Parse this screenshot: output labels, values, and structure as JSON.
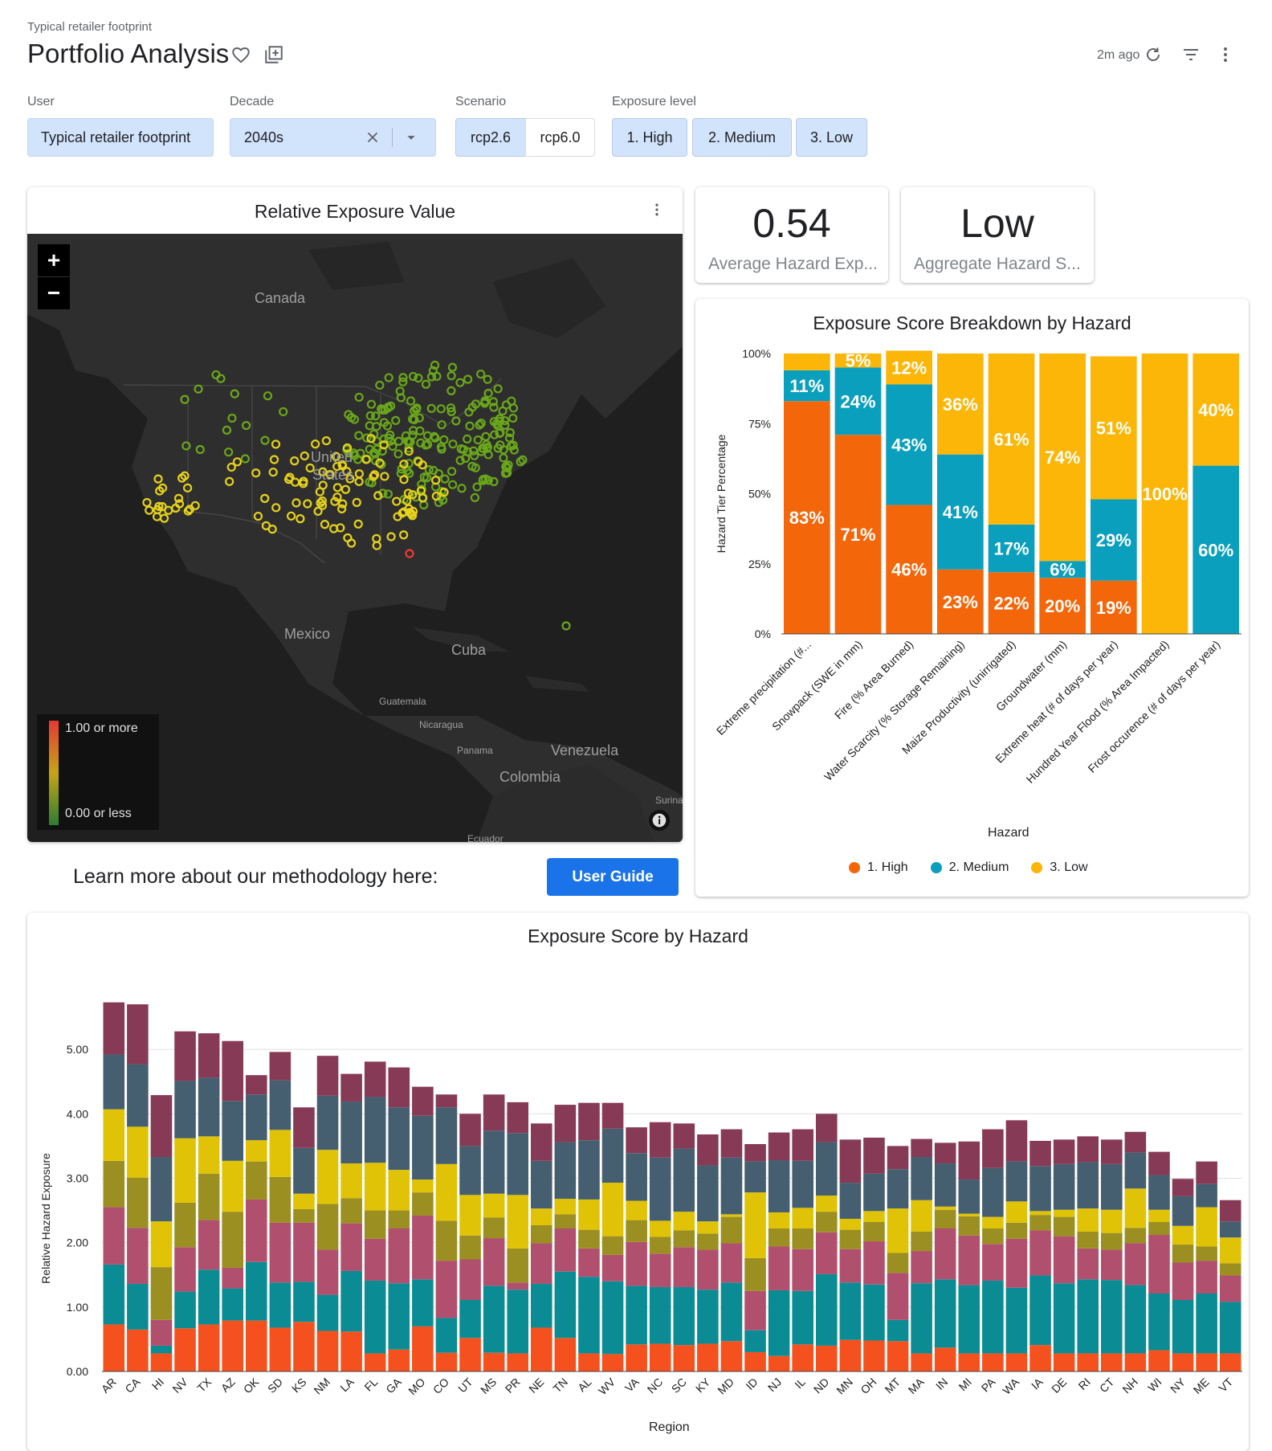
{
  "header": {
    "breadcrumb": "Typical retailer footprint",
    "title": "Portfolio Analysis",
    "updated": "2m ago",
    "icons": [
      "heart-icon",
      "add-to-collection-icon",
      "refresh-icon",
      "filter-icon",
      "more-vert-icon"
    ]
  },
  "filters": {
    "user": {
      "label": "User",
      "value": "Typical retailer footprint"
    },
    "decade": {
      "label": "Decade",
      "value": "2040s"
    },
    "scenario": {
      "label": "Scenario",
      "options": [
        "rcp2.6",
        "rcp6.0"
      ],
      "selected": "rcp2.6"
    },
    "exposure": {
      "label": "Exposure level",
      "options": [
        "1. High",
        "2. Medium",
        "3. Low"
      ]
    }
  },
  "map_card": {
    "title": "Relative Exposure Value",
    "zoom_in": "+",
    "zoom_out": "−",
    "labels": {
      "canada": "Canada",
      "us1": "United",
      "us2": "States",
      "mexico": "Mexico",
      "cuba": "Cuba",
      "guatemala": "Guatemala",
      "nicaragua": "Nicaragua",
      "panama": "Panama",
      "venezuela": "Venezuela",
      "colombia": "Colombia",
      "ecuador": "Ecuador",
      "suriname": "Surina"
    },
    "legend": {
      "max": "1.00 or more",
      "min": "0.00 or less"
    },
    "colors": {
      "low": "#6aa61b",
      "mid": "#e6d21b",
      "high": "#e53935"
    }
  },
  "kpis": [
    {
      "value": "0.54",
      "label": "Average Hazard Exp..."
    },
    {
      "value": "Low",
      "label": "Aggregate Hazard S..."
    }
  ],
  "methodology": {
    "text": "Learn more about our methodology here:",
    "button": "User Guide"
  },
  "breakdown_chart": {
    "title": "Exposure Score Breakdown by Hazard",
    "type": "bar",
    "stacked": true,
    "normalized": true,
    "xlabel": "Hazard",
    "ylabel": "Hazard Tier Percentage",
    "yticks": [
      "0%",
      "25%",
      "50%",
      "75%",
      "100%"
    ],
    "categories": [
      "Extreme precipitation (#...",
      "Snowpack (SWE in mm)",
      "Fire (% Area Burned)",
      "Water Scarcity (% Storage Remaining)",
      "Maize Productivity (unirrigated)",
      "Groundwater (mm)",
      "Extreme heat (# of days per year)",
      "Hundred Year Flood (% Area Impacted)",
      "Frost occurence (# of days per year)"
    ],
    "series": [
      {
        "name": "1. High",
        "color": "#f4660a",
        "values": [
          83,
          71,
          46,
          23,
          22,
          20,
          19,
          0,
          0
        ]
      },
      {
        "name": "2. Medium",
        "color": "#0b9fbe",
        "values": [
          11,
          24,
          43,
          41,
          17,
          6,
          29,
          0,
          60
        ]
      },
      {
        "name": "3. Low",
        "color": "#fbb608",
        "values": [
          6,
          5,
          12,
          36,
          61,
          74,
          51,
          100,
          40
        ]
      }
    ],
    "labels": [
      [
        "83%",
        "11%",
        ""
      ],
      [
        "71%",
        "24%",
        "5%"
      ],
      [
        "46%",
        "43%",
        "12%"
      ],
      [
        "23%",
        "41%",
        "36%"
      ],
      [
        "22%",
        "17%",
        "61%"
      ],
      [
        "20%",
        "6%",
        "74%"
      ],
      [
        "19%",
        "29%",
        "51%"
      ],
      [
        "",
        "",
        "100%"
      ],
      [
        "",
        "60%",
        "40%"
      ]
    ]
  },
  "chart_data": {
    "type": "bar",
    "stacked": true,
    "title": "Exposure Score by Hazard",
    "xlabel": "Region",
    "ylabel": "Relative Hazard Exposure",
    "ylim": [
      0,
      5.75
    ],
    "yticks": [
      "0.00",
      "1.00",
      "2.00",
      "3.00",
      "4.00",
      "5.00"
    ],
    "grid": true,
    "categories": [
      "AR",
      "CA",
      "HI",
      "NV",
      "TX",
      "AZ",
      "OK",
      "SD",
      "KS",
      "NM",
      "LA",
      "FL",
      "GA",
      "MO",
      "CO",
      "UT",
      "MS",
      "PR",
      "NE",
      "TN",
      "AL",
      "WV",
      "VA",
      "NC",
      "SC",
      "KY",
      "MD",
      "ID",
      "NJ",
      "IL",
      "ND",
      "MN",
      "OH",
      "MT",
      "MA",
      "IN",
      "MI",
      "PA",
      "WA",
      "IA",
      "DE",
      "RI",
      "CT",
      "NH",
      "WI",
      "NY",
      "ME",
      "VT"
    ],
    "series": [
      {
        "color": "#f4511e",
        "values": [
          0.73,
          0.65,
          0.28,
          0.67,
          0.73,
          0.79,
          0.79,
          0.68,
          0.77,
          0.63,
          0.62,
          0.28,
          0.34,
          0.7,
          0.29,
          0.52,
          0.29,
          0.28,
          0.68,
          0.52,
          0.28,
          0.27,
          0.42,
          0.43,
          0.41,
          0.43,
          0.47,
          0.3,
          0.24,
          0.42,
          0.4,
          0.49,
          0.48,
          0.47,
          0.28,
          0.37,
          0.28,
          0.28,
          0.28,
          0.41,
          0.28,
          0.28,
          0.28,
          0.28,
          0.33,
          0.28,
          0.28,
          0.28
        ]
      },
      {
        "color": "#0b8c94",
        "values": [
          0.93,
          0.71,
          0.12,
          0.57,
          0.85,
          0.5,
          0.91,
          0.7,
          0.62,
          0.56,
          0.94,
          1.13,
          1.03,
          0.73,
          0.54,
          0.59,
          1.04,
          0.99,
          0.68,
          1.03,
          1.19,
          1.13,
          0.91,
          0.88,
          0.9,
          0.84,
          0.91,
          0.34,
          1.02,
          0.83,
          1.11,
          0.89,
          0.87,
          0.33,
          1.09,
          1.06,
          1.06,
          1.13,
          1.02,
          1.08,
          1.09,
          1.15,
          1.14,
          1.06,
          0.88,
          0.83,
          0.93,
          0.8
        ]
      },
      {
        "color": "#b1506e",
        "values": [
          0.89,
          0.87,
          0.4,
          0.69,
          0.77,
          0.32,
          0.97,
          0.93,
          0.92,
          0.7,
          0.74,
          0.65,
          0.85,
          0.99,
          0.89,
          0.63,
          0.74,
          0.11,
          0.63,
          0.67,
          0.44,
          0.41,
          0.68,
          0.52,
          0.62,
          0.62,
          0.61,
          0.61,
          0.68,
          0.65,
          0.65,
          0.52,
          0.67,
          0.73,
          0.5,
          0.79,
          0.77,
          0.57,
          0.76,
          0.7,
          0.73,
          0.48,
          0.47,
          0.65,
          0.91,
          0.58,
          0.51,
          0.41
        ]
      },
      {
        "color": "#9b8f21",
        "values": [
          0.72,
          0.78,
          0.82,
          0.69,
          0.72,
          0.87,
          0.59,
          0.71,
          0.21,
          0.71,
          0.39,
          0.44,
          0.28,
          0.36,
          0.62,
          0.37,
          0.32,
          0.53,
          0.28,
          0.22,
          0.29,
          0.29,
          0.34,
          0.26,
          0.26,
          0.25,
          0.41,
          0.51,
          0.28,
          0.32,
          0.32,
          0.3,
          0.3,
          0.31,
          0.3,
          0.29,
          0.3,
          0.24,
          0.25,
          0.24,
          0.3,
          0.26,
          0.26,
          0.24,
          0.2,
          0.28,
          0.22,
          0.19
        ]
      },
      {
        "color": "#e0c306",
        "values": [
          0.8,
          0.79,
          0.71,
          1.0,
          0.58,
          0.79,
          0.33,
          0.73,
          0.24,
          0.84,
          0.54,
          0.74,
          0.63,
          0.2,
          0.88,
          0.63,
          0.37,
          0.83,
          0.26,
          0.24,
          0.47,
          0.83,
          0.3,
          0.25,
          0.29,
          0.19,
          0.04,
          1.02,
          0.25,
          0.32,
          0.25,
          0.17,
          0.17,
          0.69,
          0.49,
          0.05,
          0.04,
          0.18,
          0.33,
          0.06,
          0.11,
          0.36,
          0.36,
          0.61,
          0.19,
          0.29,
          0.61,
          0.4
        ]
      },
      {
        "color": "#455f70",
        "values": [
          0.85,
          0.97,
          1.0,
          0.89,
          0.91,
          0.93,
          0.71,
          0.77,
          0.71,
          0.84,
          0.96,
          1.02,
          0.97,
          0.99,
          0.88,
          0.76,
          0.98,
          0.96,
          0.74,
          0.88,
          0.92,
          0.84,
          0.74,
          0.98,
          0.98,
          0.87,
          0.88,
          0.48,
          0.81,
          0.73,
          0.83,
          0.56,
          0.58,
          0.61,
          0.67,
          0.67,
          0.53,
          0.76,
          0.62,
          0.7,
          0.71,
          0.72,
          0.71,
          0.56,
          0.54,
          0.46,
          0.36,
          0.25
        ]
      },
      {
        "color": "#873a55",
        "values": [
          0.81,
          0.93,
          0.96,
          0.77,
          0.69,
          0.93,
          0.3,
          0.44,
          0.63,
          0.62,
          0.43,
          0.55,
          0.62,
          0.45,
          0.2,
          0.5,
          0.56,
          0.48,
          0.58,
          0.58,
          0.58,
          0.4,
          0.4,
          0.55,
          0.39,
          0.48,
          0.44,
          0.27,
          0.43,
          0.49,
          0.44,
          0.67,
          0.56,
          0.36,
          0.28,
          0.32,
          0.59,
          0.6,
          0.64,
          0.39,
          0.38,
          0.4,
          0.38,
          0.32,
          0.36,
          0.27,
          0.35,
          0.33
        ]
      }
    ]
  }
}
